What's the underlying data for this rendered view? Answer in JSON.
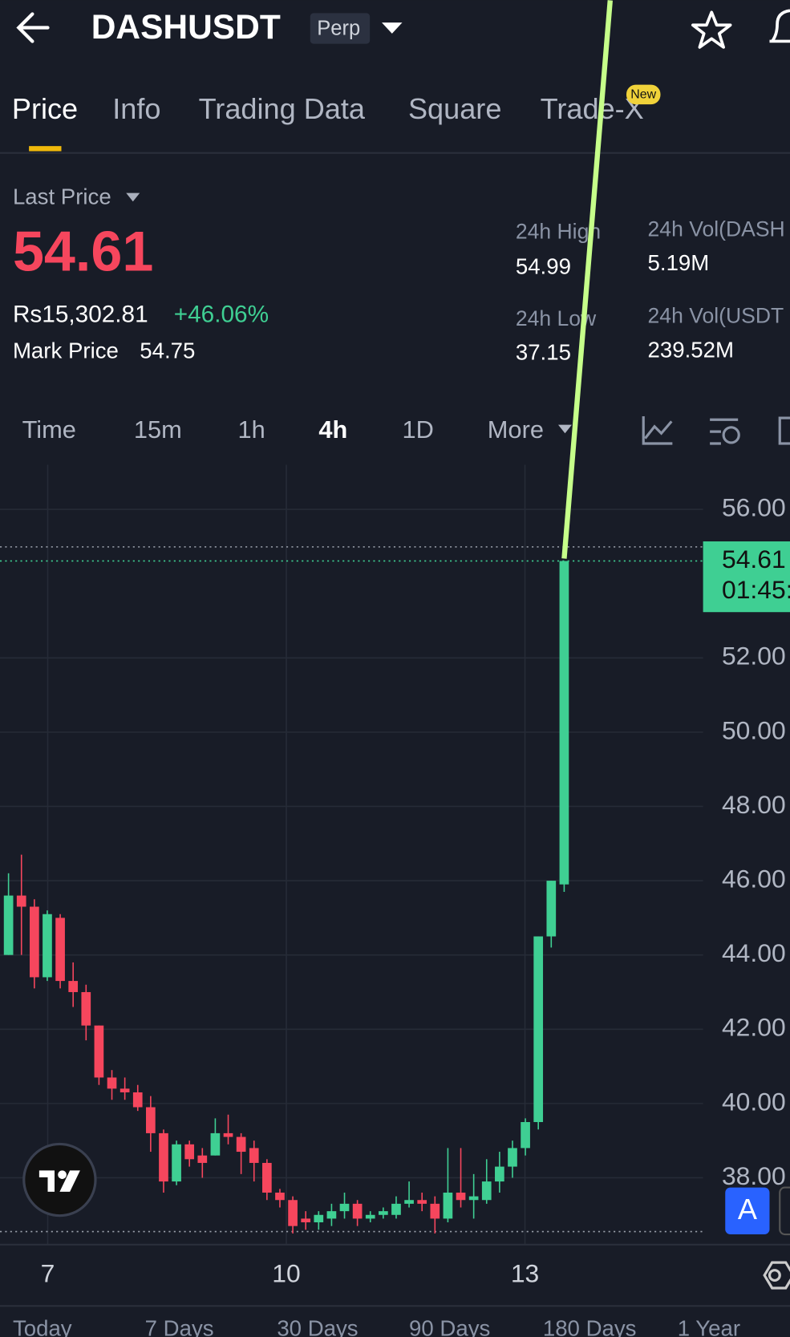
{
  "header": {
    "title": "DASHUSDT",
    "badge": "Perp"
  },
  "tabs": [
    "Price",
    "Info",
    "Trading Data",
    "Square",
    "Trade-X"
  ],
  "new_badge": "New",
  "ticker": {
    "last_price_label": "Last Price",
    "last_price": "54.61",
    "local_price": "Rs15,302.81",
    "change": "+46.06%",
    "mark_price_label": "Mark Price",
    "mark_price": "54.75",
    "stats": [
      {
        "label": "24h High",
        "value": "54.99"
      },
      {
        "label": "24h Vol(DASH",
        "value": "5.19M"
      },
      {
        "label": "24h Low",
        "value": "37.15"
      },
      {
        "label": "24h Vol(USDT",
        "value": "239.52M"
      }
    ]
  },
  "intervals": [
    "Time",
    "15m",
    "1h",
    "4h",
    "1D",
    "More"
  ],
  "chart_data": {
    "type": "candlestick",
    "x_labels": [
      "7",
      "10",
      "13"
    ],
    "open": [
      44.0,
      45.6,
      45.3,
      43.4,
      45.0,
      43.3,
      43.0,
      42.1,
      40.7,
      40.4,
      40.3,
      39.9,
      39.2,
      37.9,
      38.9,
      38.6,
      38.6,
      39.2,
      39.1,
      38.8,
      38.4,
      37.6,
      37.4,
      36.9,
      36.8,
      36.9,
      37.1,
      37.3,
      36.9,
      37.0,
      37.0,
      37.3,
      37.4,
      37.3,
      36.9,
      37.6,
      37.4,
      37.4,
      37.9,
      38.3,
      38.8,
      39.5,
      44.5,
      45.9
    ],
    "high": [
      46.2,
      46.7,
      45.5,
      45.2,
      45.1,
      43.8,
      43.2,
      42.1,
      40.9,
      40.7,
      40.5,
      40.2,
      39.3,
      39.0,
      39.0,
      38.8,
      39.6,
      39.7,
      39.2,
      39.0,
      38.5,
      37.7,
      37.5,
      37.1,
      37.1,
      37.3,
      37.6,
      37.4,
      37.1,
      37.2,
      37.5,
      37.9,
      37.6,
      37.5,
      38.8,
      38.8,
      38.1,
      38.5,
      38.7,
      39.0,
      39.6,
      44.5,
      46.0,
      54.61
    ],
    "low": [
      44.0,
      44.0,
      43.1,
      43.3,
      43.1,
      42.6,
      41.7,
      40.5,
      40.1,
      40.1,
      39.8,
      38.7,
      37.6,
      37.8,
      38.3,
      38.0,
      38.6,
      38.9,
      38.1,
      37.9,
      37.4,
      37.2,
      36.5,
      36.6,
      36.6,
      36.7,
      36.9,
      36.7,
      36.8,
      36.9,
      36.9,
      37.2,
      37.1,
      36.5,
      36.8,
      37.2,
      36.9,
      37.3,
      37.6,
      38.0,
      38.6,
      39.3,
      44.2,
      45.7
    ],
    "close": [
      45.6,
      45.3,
      43.4,
      45.1,
      43.3,
      43.0,
      42.1,
      40.7,
      40.4,
      40.3,
      39.9,
      39.2,
      37.9,
      38.9,
      38.5,
      38.4,
      39.2,
      39.1,
      38.7,
      38.4,
      37.6,
      37.4,
      36.7,
      36.8,
      37.0,
      37.1,
      37.3,
      36.9,
      37.0,
      37.1,
      37.3,
      37.4,
      37.3,
      36.9,
      37.6,
      37.4,
      37.5,
      37.9,
      38.3,
      38.8,
      39.5,
      44.5,
      46.0,
      54.61
    ],
    "up_color": "#3fcf93",
    "down_color": "#f6465d",
    "ylim": [
      36.2,
      57.2
    ],
    "yticks": [
      {
        "value": 56,
        "label": "56.00"
      },
      {
        "value": 52,
        "label": "52.00"
      },
      {
        "value": 50,
        "label": "50.00"
      },
      {
        "value": 48,
        "label": "48.00"
      },
      {
        "value": 46,
        "label": "46.00"
      },
      {
        "value": 44,
        "label": "44.00"
      },
      {
        "value": 42,
        "label": "42.00"
      },
      {
        "value": 40,
        "label": "40.00"
      },
      {
        "value": 38,
        "label": "38.00"
      }
    ],
    "current_price": 54.61,
    "countdown": "01:45:",
    "marker_lines": [
      54.99,
      36.55
    ],
    "grid": true
  },
  "periods": [
    "Today",
    "7 Days",
    "30 Days",
    "90 Days",
    "180 Days",
    "1 Year"
  ],
  "autoscale_button": "A"
}
